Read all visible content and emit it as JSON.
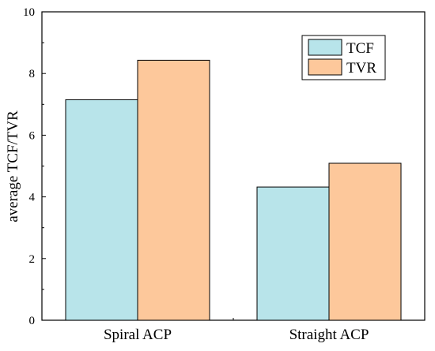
{
  "chart_data": {
    "type": "bar",
    "title": "",
    "xlabel": "",
    "ylabel": "average TCF/TVR",
    "categories": [
      "Spiral ACP",
      "Straight ACP"
    ],
    "series": [
      {
        "name": "TCF",
        "values": [
          7.15,
          4.32
        ],
        "color": "#b8e4ea"
      },
      {
        "name": "TVR",
        "values": [
          8.43,
          5.09
        ],
        "color": "#fdc89b"
      }
    ],
    "ylim": [
      0,
      10
    ],
    "yticks": [
      "0",
      "2",
      "4",
      "6",
      "8",
      "10"
    ],
    "grid": false,
    "legend_position": "top-right"
  }
}
